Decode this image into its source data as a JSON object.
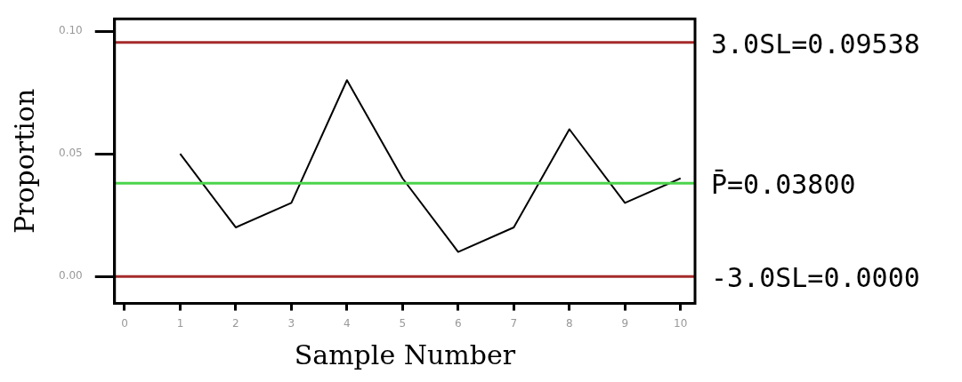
{
  "chart_data": {
    "type": "line",
    "xlabel": "Sample Number",
    "ylabel": "Proportion",
    "x": [
      1,
      2,
      3,
      4,
      5,
      6,
      7,
      8,
      9,
      10
    ],
    "series": [
      {
        "color": "#000000",
        "values": [
          0.05,
          0.02,
          0.03,
          0.08,
          0.04,
          0.01,
          0.02,
          0.06,
          0.03,
          0.04
        ]
      }
    ],
    "xlim": [
      -0.18,
      10.26
    ],
    "xticks": [
      0,
      1,
      2,
      3,
      4,
      5,
      6,
      7,
      8,
      9,
      10
    ],
    "ylim": [
      -0.011,
      0.105
    ],
    "yticks": [
      {
        "value": 0,
        "label": "0.00"
      },
      {
        "value": 0.05,
        "label": "0.05"
      },
      {
        "value": 0.1,
        "label": "0.10"
      }
    ],
    "ref_lines": [
      {
        "axis": "y",
        "value": 0.09538,
        "label": "3.0SL=0.09538",
        "color": "#a52a2a"
      },
      {
        "axis": "y",
        "value": 0.038,
        "label": "P̄=0.03800",
        "color": "#4cd44c"
      },
      {
        "axis": "y",
        "value": 0,
        "label": "-3.0SL=0.0000",
        "color": "#a52a2a"
      }
    ],
    "grid": false,
    "legend": false,
    "marker": "none",
    "line_style": "solid"
  }
}
